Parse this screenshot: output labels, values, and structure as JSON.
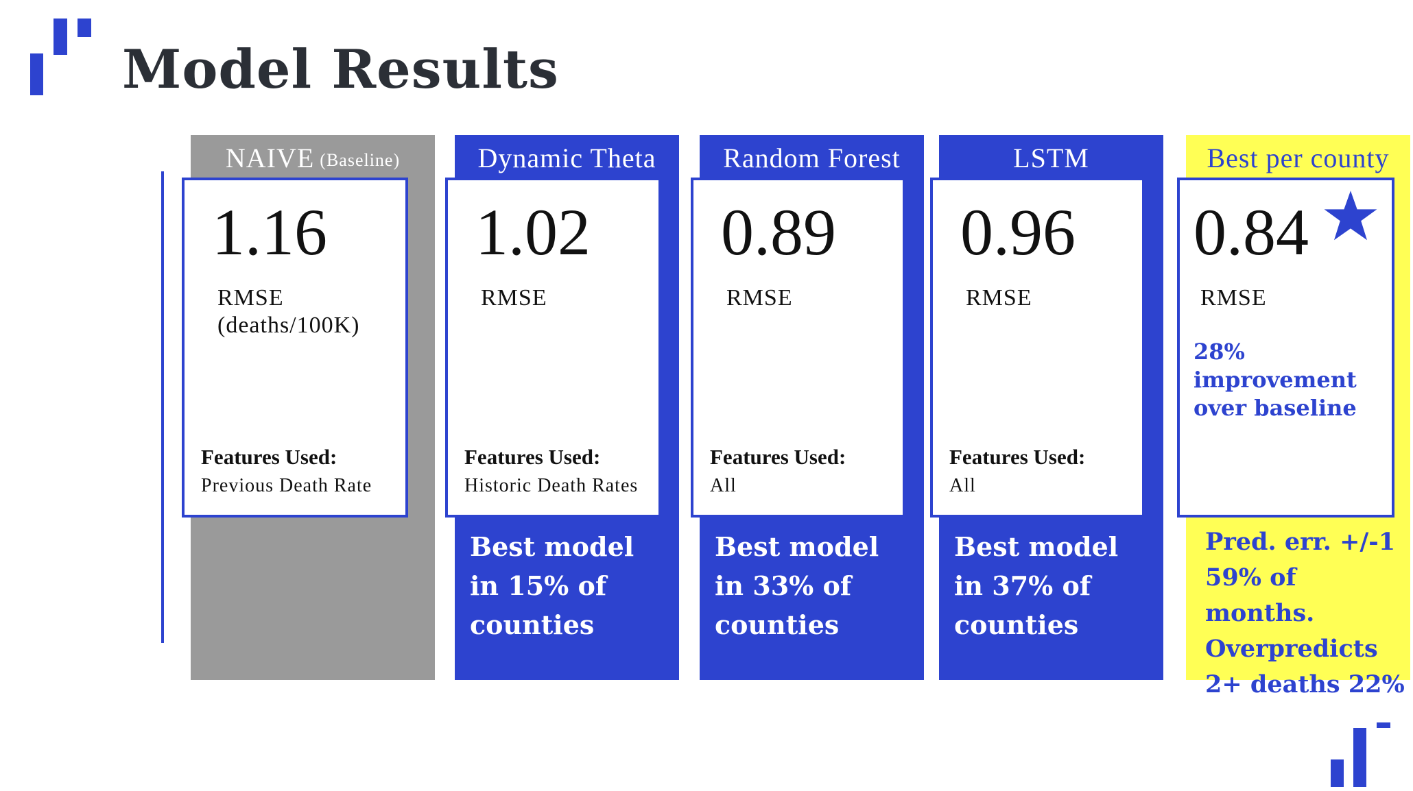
{
  "title": "Model Results",
  "colors": {
    "accent_blue": "#2d43cf",
    "gray": "#9a9a9a",
    "yellow": "#ffff55",
    "title": "#2b2f36"
  },
  "models": [
    {
      "name": "NAIVE",
      "name_suffix": "(Baseline)",
      "value": "1.16",
      "metric": "RMSE",
      "metric_unit": "(deaths/100K)",
      "features_heading": "Features Used:",
      "features": "Previous Death Rate",
      "bottom": ""
    },
    {
      "name": "Dynamic Theta",
      "value": "1.02",
      "metric": "RMSE",
      "features_heading": "Features Used:",
      "features": "Historic Death Rates",
      "bottom": "Best model in 15% of counties"
    },
    {
      "name": "Random Forest",
      "value": "0.89",
      "metric": "RMSE",
      "features_heading": "Features Used:",
      "features": "All",
      "bottom": "Best model in 33% of counties"
    },
    {
      "name": "LSTM",
      "value": "0.96",
      "metric": "RMSE",
      "features_heading": "Features Used:",
      "features": "All",
      "bottom": "Best model in 37% of counties"
    },
    {
      "name": "Best per county",
      "value": "0.84",
      "metric": "RMSE",
      "icon": "star-icon",
      "note": "28% improvement over baseline",
      "bottom": "Pred. err. +/-1 59% of months. Overpredicts 2+ deaths 22%"
    }
  ]
}
